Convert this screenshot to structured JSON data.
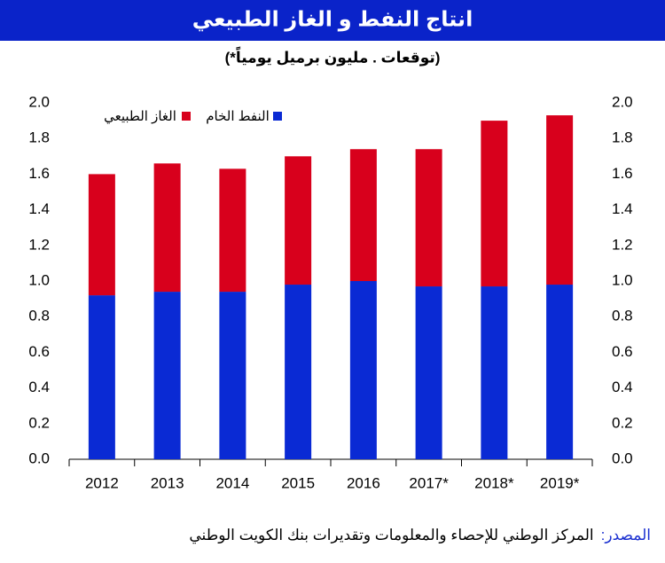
{
  "chart_data": {
    "type": "stacked-bar",
    "title": "انتاج النفط و الغاز الطبيعي",
    "subtitle": "(*توقعات . مليون برميل يومياً)",
    "categories": [
      "2012",
      "2013",
      "2014",
      "2015",
      "2016",
      "2017*",
      "2018*",
      "2019*"
    ],
    "series": [
      {
        "name": "النفط الخام",
        "color": "#0a2ad4",
        "values": [
          0.92,
          0.94,
          0.94,
          0.98,
          1.0,
          0.97,
          0.97,
          0.98
        ]
      },
      {
        "name": "الغاز الطبيعي",
        "color": "#d8001c",
        "values": [
          0.68,
          0.72,
          0.69,
          0.72,
          0.74,
          0.77,
          0.93,
          0.95
        ]
      }
    ],
    "ylim": [
      0,
      2
    ],
    "yticks": [
      {
        "value": 0,
        "label": "0.0"
      },
      {
        "value": 0.2,
        "label": "0.2"
      },
      {
        "value": 0.4,
        "label": "0.4"
      },
      {
        "value": 0.6,
        "label": "0.6"
      },
      {
        "value": 0.8,
        "label": "0.8"
      },
      {
        "value": 1,
        "label": "1.0"
      },
      {
        "value": 1.2,
        "label": "1.2"
      },
      {
        "value": 1.4,
        "label": "1.4"
      },
      {
        "value": 1.6,
        "label": "1.6"
      },
      {
        "value": 1.8,
        "label": "1.8"
      },
      {
        "value": 2,
        "label": "2.0"
      }
    ],
    "y2lim": [
      0,
      2
    ],
    "y2ticks": [
      {
        "value": 0,
        "label": "0.0"
      },
      {
        "value": 0.2,
        "label": "0.2"
      },
      {
        "value": 0.4,
        "label": "0.4"
      },
      {
        "value": 0.6,
        "label": "0.6"
      },
      {
        "value": 0.8,
        "label": "0.8"
      },
      {
        "value": 1,
        "label": "1.0"
      },
      {
        "value": 1.2,
        "label": "1.2"
      },
      {
        "value": 1.4,
        "label": "1.4"
      },
      {
        "value": 1.6,
        "label": "1.6"
      },
      {
        "value": 1.8,
        "label": "1.8"
      },
      {
        "value": 2,
        "label": "2.0"
      }
    ],
    "grid": false,
    "legend": "top-left",
    "title_color": "#0a23c9",
    "source_label": "المصدر:",
    "source": "المركز الوطني للإحصاء والمعلومات وتقديرات بنك الكويت الوطني"
  }
}
